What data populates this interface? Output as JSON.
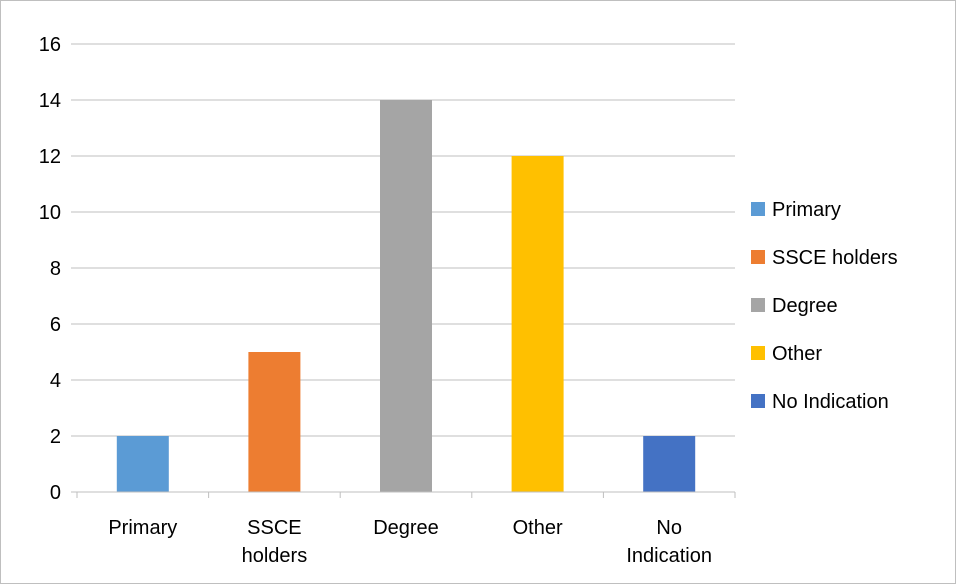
{
  "chart_data": {
    "type": "bar",
    "categories": [
      "Primary",
      "SSCE holders",
      "Degree",
      "Other",
      "No Indication"
    ],
    "category_label_lines": [
      [
        "Primary"
      ],
      [
        "SSCE",
        "holders"
      ],
      [
        "Degree"
      ],
      [
        "Other"
      ],
      [
        "No",
        "Indication"
      ]
    ],
    "values": [
      2,
      5,
      14,
      12,
      2
    ],
    "colors": [
      "#5B9BD5",
      "#ED7D31",
      "#A5A5A5",
      "#FFC000",
      "#4472C4"
    ],
    "legend": [
      "Primary",
      "SSCE holders",
      "Degree",
      "Other",
      "No Indication"
    ],
    "legend_position": "right",
    "ylim": [
      0,
      16
    ],
    "yticks": [
      0,
      2,
      4,
      6,
      8,
      10,
      12,
      14,
      16
    ],
    "grid": true,
    "grid_color": "#bfbfbf"
  }
}
